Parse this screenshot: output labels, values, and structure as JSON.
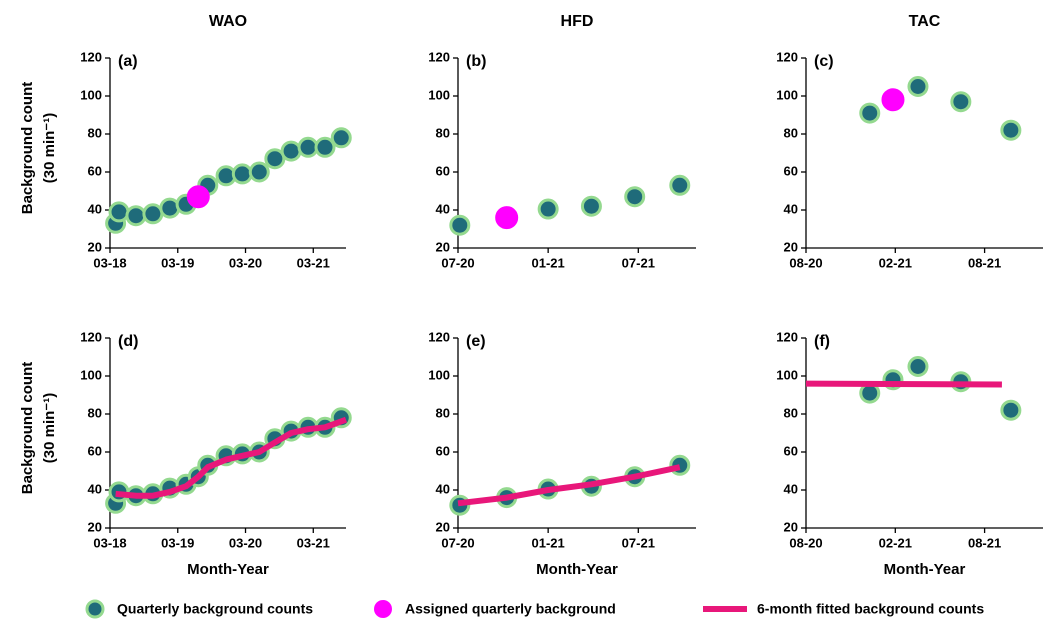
{
  "chart_data": [
    {
      "type": "scatter",
      "title": "WAO",
      "panel_label": "(a)",
      "ylabel": [
        "Background count",
        "(30 min⁻¹)"
      ],
      "xlim": [
        2018.167,
        2021.65
      ],
      "ylim": [
        20,
        120
      ],
      "yticks": [
        20,
        40,
        60,
        80,
        100,
        120
      ],
      "xticks": [
        {
          "value": 2018.167,
          "label": "03-18"
        },
        {
          "value": 2019.167,
          "label": "03-19"
        },
        {
          "value": 2020.167,
          "label": "03-20"
        },
        {
          "value": 2021.167,
          "label": "03-21"
        }
      ],
      "series": [
        {
          "name": "Quarterly background counts",
          "style": "marker",
          "color": "#1f6b7a",
          "edgecolor": "#94d98f",
          "x": [
            2018.25,
            2018.3,
            2018.55,
            2018.8,
            2019.05,
            2019.29,
            2019.61,
            2019.88,
            2020.12,
            2020.37,
            2020.6,
            2020.84,
            2021.09,
            2021.34,
            2021.58
          ],
          "values": [
            33,
            39,
            37,
            38,
            41,
            43,
            53,
            58,
            59,
            60,
            67,
            71,
            73,
            73,
            78
          ]
        },
        {
          "name": "Assigned quarterly background",
          "style": "marker",
          "color": "#ff00ff",
          "edgecolor": "#ff00ff",
          "x": [
            2019.47
          ],
          "values": [
            47
          ]
        }
      ]
    },
    {
      "type": "scatter",
      "title": "HFD",
      "panel_label": "(b)",
      "xlim": [
        2020.5,
        2021.82
      ],
      "ylim": [
        20,
        120
      ],
      "yticks": [
        20,
        40,
        60,
        80,
        100,
        120
      ],
      "xticks": [
        {
          "value": 2020.5,
          "label": "07-20"
        },
        {
          "value": 2021.0,
          "label": "01-21"
        },
        {
          "value": 2021.5,
          "label": "07-21"
        }
      ],
      "series": [
        {
          "name": "Quarterly background counts",
          "style": "marker",
          "color": "#1f6b7a",
          "edgecolor": "#94d98f",
          "x": [
            2020.51,
            2021.0,
            2021.24,
            2021.48,
            2021.73
          ],
          "values": [
            32,
            40.5,
            42,
            47,
            53
          ]
        },
        {
          "name": "Assigned quarterly background",
          "style": "marker",
          "color": "#ff00ff",
          "edgecolor": "#ff00ff",
          "x": [
            2020.77
          ],
          "values": [
            36
          ]
        }
      ]
    },
    {
      "type": "scatter",
      "title": "TAC",
      "panel_label": "(c)",
      "xlim": [
        2020.583,
        2021.91
      ],
      "ylim": [
        20,
        120
      ],
      "yticks": [
        20,
        40,
        60,
        80,
        100,
        120
      ],
      "xticks": [
        {
          "value": 2020.583,
          "label": "08-20"
        },
        {
          "value": 2021.083,
          "label": "02-21"
        },
        {
          "value": 2021.583,
          "label": "08-21"
        }
      ],
      "series": [
        {
          "name": "Quarterly background counts",
          "style": "marker",
          "color": "#1f6b7a",
          "edgecolor": "#94d98f",
          "x": [
            2020.94,
            2021.21,
            2021.45,
            2021.73
          ],
          "values": [
            91,
            105,
            97,
            82
          ]
        },
        {
          "name": "Assigned quarterly background",
          "style": "marker",
          "color": "#ff00ff",
          "edgecolor": "#ff00ff",
          "x": [
            2021.07
          ],
          "values": [
            98
          ]
        }
      ]
    },
    {
      "type": "scatter",
      "panel_label": "(d)",
      "ylabel": [
        "Background count",
        "(30 min⁻¹)"
      ],
      "xlabel": "Month-Year",
      "xlim": [
        2018.167,
        2021.65
      ],
      "ylim": [
        20,
        120
      ],
      "yticks": [
        20,
        40,
        60,
        80,
        100,
        120
      ],
      "xticks": [
        {
          "value": 2018.167,
          "label": "03-18"
        },
        {
          "value": 2019.167,
          "label": "03-19"
        },
        {
          "value": 2020.167,
          "label": "03-20"
        },
        {
          "value": 2021.167,
          "label": "03-21"
        }
      ],
      "series": [
        {
          "name": "Quarterly background counts",
          "style": "marker",
          "color": "#1f6b7a",
          "edgecolor": "#94d98f",
          "x": [
            2018.25,
            2018.3,
            2018.55,
            2018.8,
            2019.05,
            2019.29,
            2019.47,
            2019.61,
            2019.88,
            2020.12,
            2020.37,
            2020.6,
            2020.84,
            2021.09,
            2021.34,
            2021.58
          ],
          "values": [
            33,
            39,
            37,
            38,
            41,
            43,
            47,
            53,
            58,
            59,
            60,
            67,
            71,
            73,
            73,
            78
          ]
        },
        {
          "name": "6-month fitted background counts",
          "style": "line",
          "color": "#e8177a",
          "x": [
            2018.25,
            2018.55,
            2018.8,
            2019.05,
            2019.29,
            2019.47,
            2019.61,
            2019.88,
            2020.12,
            2020.37,
            2020.6,
            2020.84,
            2021.09,
            2021.34,
            2021.65
          ],
          "values": [
            38,
            37,
            37,
            39,
            42,
            47,
            52,
            56,
            58,
            60,
            65,
            70,
            72,
            73,
            77
          ]
        }
      ]
    },
    {
      "type": "scatter",
      "panel_label": "(e)",
      "xlabel": "Month-Year",
      "xlim": [
        2020.5,
        2021.82
      ],
      "ylim": [
        20,
        120
      ],
      "yticks": [
        20,
        40,
        60,
        80,
        100,
        120
      ],
      "xticks": [
        {
          "value": 2020.5,
          "label": "07-20"
        },
        {
          "value": 2021.0,
          "label": "01-21"
        },
        {
          "value": 2021.5,
          "label": "07-21"
        }
      ],
      "series": [
        {
          "name": "Quarterly background counts",
          "style": "marker",
          "color": "#1f6b7a",
          "edgecolor": "#94d98f",
          "x": [
            2020.51,
            2020.77,
            2021.0,
            2021.24,
            2021.48,
            2021.73
          ],
          "values": [
            32,
            36,
            40.5,
            42,
            47,
            53
          ]
        },
        {
          "name": "6-month fitted background counts",
          "style": "line",
          "color": "#e8177a",
          "x": [
            2020.5,
            2020.77,
            2021.0,
            2021.24,
            2021.48,
            2021.73
          ],
          "values": [
            33,
            36,
            40,
            43,
            47,
            52
          ]
        }
      ]
    },
    {
      "type": "scatter",
      "panel_label": "(f)",
      "xlabel": "Month-Year",
      "xlim": [
        2020.583,
        2021.91
      ],
      "ylim": [
        20,
        120
      ],
      "yticks": [
        20,
        40,
        60,
        80,
        100,
        120
      ],
      "xticks": [
        {
          "value": 2020.583,
          "label": "08-20"
        },
        {
          "value": 2021.083,
          "label": "02-21"
        },
        {
          "value": 2021.583,
          "label": "08-21"
        }
      ],
      "series": [
        {
          "name": "Quarterly background counts",
          "style": "marker",
          "color": "#1f6b7a",
          "edgecolor": "#94d98f",
          "x": [
            2020.94,
            2021.07,
            2021.21,
            2021.45,
            2021.73
          ],
          "values": [
            91,
            98,
            105,
            97,
            82
          ]
        },
        {
          "name": "6-month fitted background counts",
          "style": "line",
          "color": "#e8177a",
          "x": [
            2020.583,
            2021.68
          ],
          "values": [
            96,
            95.5
          ]
        }
      ]
    }
  ],
  "legend": "bottom"
}
